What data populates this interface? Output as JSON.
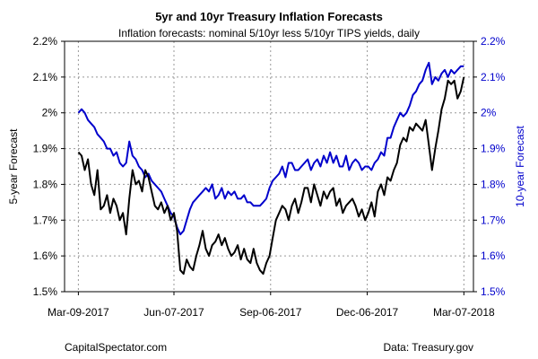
{
  "chart_data": {
    "type": "line",
    "title": "5yr and 10yr Treasury Inflation Forecasts",
    "subtitle": "Inflation forecasts: nominal 5/10yr less 5/10yr TIPS yields, daily",
    "ylabel_left": "5-year Forecast",
    "ylabel_right": "10-year Forecast",
    "ylim": [
      1.5,
      2.2
    ],
    "y_ticks": [
      "1.5%",
      "1.6%",
      "1.7%",
      "1.8%",
      "1.9%",
      "2%",
      "2.1%",
      "2.2%"
    ],
    "y_tick_values": [
      1.5,
      1.6,
      1.7,
      1.8,
      1.9,
      2.0,
      2.1,
      2.2
    ],
    "x_ticks": [
      "Mar-09-2017",
      "Jun-07-2017",
      "Sep-06-2017",
      "Dec-06-2017",
      "Mar-07-2018"
    ],
    "x_tick_values": [
      "2017-03-09",
      "2017-06-07",
      "2017-09-06",
      "2017-12-06",
      "2018-03-07"
    ],
    "xlim": [
      "2017-02-24",
      "2018-03-16"
    ],
    "grid": true,
    "source_left": "CapitalSpectator.com",
    "source_right": "Data: Treasury.gov",
    "colors": {
      "five_year": "#000000",
      "ten_year": "#0000cc",
      "grid": "#999999",
      "axis": "#000000"
    },
    "series": [
      {
        "key": "five_year",
        "axis": "left",
        "x": [
          "2017-03-09",
          "2017-03-12",
          "2017-03-15",
          "2017-03-18",
          "2017-03-21",
          "2017-03-24",
          "2017-03-27",
          "2017-03-30",
          "2017-04-02",
          "2017-04-05",
          "2017-04-08",
          "2017-04-11",
          "2017-04-14",
          "2017-04-17",
          "2017-04-20",
          "2017-04-23",
          "2017-04-26",
          "2017-04-29",
          "2017-05-02",
          "2017-05-05",
          "2017-05-08",
          "2017-05-11",
          "2017-05-14",
          "2017-05-17",
          "2017-05-20",
          "2017-05-23",
          "2017-05-26",
          "2017-05-29",
          "2017-06-01",
          "2017-06-04",
          "2017-06-07",
          "2017-06-10",
          "2017-06-13",
          "2017-06-16",
          "2017-06-19",
          "2017-06-22",
          "2017-06-25",
          "2017-06-28",
          "2017-07-01",
          "2017-07-04",
          "2017-07-07",
          "2017-07-10",
          "2017-07-13",
          "2017-07-16",
          "2017-07-19",
          "2017-07-22",
          "2017-07-25",
          "2017-07-28",
          "2017-07-31",
          "2017-08-03",
          "2017-08-06",
          "2017-08-09",
          "2017-08-12",
          "2017-08-15",
          "2017-08-18",
          "2017-08-21",
          "2017-08-24",
          "2017-08-27",
          "2017-08-30",
          "2017-09-02",
          "2017-09-05",
          "2017-09-08",
          "2017-09-11",
          "2017-09-14",
          "2017-09-17",
          "2017-09-20",
          "2017-09-23",
          "2017-09-26",
          "2017-09-29",
          "2017-10-02",
          "2017-10-05",
          "2017-10-08",
          "2017-10-11",
          "2017-10-14",
          "2017-10-17",
          "2017-10-20",
          "2017-10-23",
          "2017-10-26",
          "2017-10-29",
          "2017-11-01",
          "2017-11-04",
          "2017-11-07",
          "2017-11-10",
          "2017-11-13",
          "2017-11-16",
          "2017-11-19",
          "2017-11-22",
          "2017-11-25",
          "2017-11-28",
          "2017-12-01",
          "2017-12-04",
          "2017-12-07",
          "2017-12-10",
          "2017-12-13",
          "2017-12-16",
          "2017-12-19",
          "2017-12-22",
          "2017-12-25",
          "2017-12-28",
          "2017-12-31",
          "2018-01-03",
          "2018-01-06",
          "2018-01-09",
          "2018-01-12",
          "2018-01-15",
          "2018-01-18",
          "2018-01-21",
          "2018-01-24",
          "2018-01-27",
          "2018-01-30",
          "2018-02-02",
          "2018-02-05",
          "2018-02-08",
          "2018-02-11",
          "2018-02-14",
          "2018-02-17",
          "2018-02-20",
          "2018-02-23",
          "2018-02-26",
          "2018-03-01",
          "2018-03-04",
          "2018-03-07"
        ],
        "values": [
          1.89,
          1.88,
          1.84,
          1.87,
          1.8,
          1.77,
          1.84,
          1.73,
          1.74,
          1.77,
          1.72,
          1.76,
          1.74,
          1.7,
          1.72,
          1.66,
          1.76,
          1.84,
          1.8,
          1.81,
          1.78,
          1.84,
          1.82,
          1.78,
          1.74,
          1.73,
          1.75,
          1.72,
          1.74,
          1.7,
          1.72,
          1.67,
          1.56,
          1.55,
          1.59,
          1.57,
          1.56,
          1.6,
          1.63,
          1.67,
          1.62,
          1.6,
          1.63,
          1.64,
          1.66,
          1.63,
          1.65,
          1.62,
          1.6,
          1.61,
          1.63,
          1.59,
          1.62,
          1.59,
          1.58,
          1.62,
          1.58,
          1.56,
          1.55,
          1.58,
          1.6,
          1.65,
          1.7,
          1.72,
          1.74,
          1.73,
          1.7,
          1.74,
          1.76,
          1.72,
          1.75,
          1.79,
          1.79,
          1.75,
          1.8,
          1.77,
          1.74,
          1.78,
          1.76,
          1.78,
          1.79,
          1.74,
          1.76,
          1.72,
          1.74,
          1.75,
          1.76,
          1.74,
          1.71,
          1.73,
          1.7,
          1.72,
          1.75,
          1.71,
          1.78,
          1.8,
          1.77,
          1.82,
          1.81,
          1.84,
          1.86,
          1.91,
          1.93,
          1.92,
          1.96,
          1.95,
          1.97,
          1.96,
          1.95,
          1.98,
          1.91,
          1.84,
          1.9,
          1.95,
          2.01,
          2.04,
          2.09,
          2.08,
          2.09,
          2.04,
          2.06,
          2.1
        ]
      },
      {
        "key": "ten_year",
        "axis": "right",
        "x": [
          "2017-03-09",
          "2017-03-12",
          "2017-03-15",
          "2017-03-18",
          "2017-03-21",
          "2017-03-24",
          "2017-03-27",
          "2017-03-30",
          "2017-04-02",
          "2017-04-05",
          "2017-04-08",
          "2017-04-11",
          "2017-04-14",
          "2017-04-17",
          "2017-04-20",
          "2017-04-23",
          "2017-04-26",
          "2017-04-29",
          "2017-05-02",
          "2017-05-05",
          "2017-05-08",
          "2017-05-11",
          "2017-05-14",
          "2017-05-17",
          "2017-05-20",
          "2017-05-23",
          "2017-05-26",
          "2017-05-29",
          "2017-06-01",
          "2017-06-04",
          "2017-06-07",
          "2017-06-10",
          "2017-06-13",
          "2017-06-16",
          "2017-06-19",
          "2017-06-22",
          "2017-06-25",
          "2017-06-28",
          "2017-07-01",
          "2017-07-04",
          "2017-07-07",
          "2017-07-10",
          "2017-07-13",
          "2017-07-16",
          "2017-07-19",
          "2017-07-22",
          "2017-07-25",
          "2017-07-28",
          "2017-07-31",
          "2017-08-03",
          "2017-08-06",
          "2017-08-09",
          "2017-08-12",
          "2017-08-15",
          "2017-08-18",
          "2017-08-21",
          "2017-08-24",
          "2017-08-27",
          "2017-08-30",
          "2017-09-02",
          "2017-09-05",
          "2017-09-08",
          "2017-09-11",
          "2017-09-14",
          "2017-09-17",
          "2017-09-20",
          "2017-09-23",
          "2017-09-26",
          "2017-09-29",
          "2017-10-02",
          "2017-10-05",
          "2017-10-08",
          "2017-10-11",
          "2017-10-14",
          "2017-10-17",
          "2017-10-20",
          "2017-10-23",
          "2017-10-26",
          "2017-10-29",
          "2017-11-01",
          "2017-11-04",
          "2017-11-07",
          "2017-11-10",
          "2017-11-13",
          "2017-11-16",
          "2017-11-19",
          "2017-11-22",
          "2017-11-25",
          "2017-11-28",
          "2017-12-01",
          "2017-12-04",
          "2017-12-07",
          "2017-12-10",
          "2017-12-13",
          "2017-12-16",
          "2017-12-19",
          "2017-12-22",
          "2017-12-25",
          "2017-12-28",
          "2017-12-31",
          "2018-01-03",
          "2018-01-06",
          "2018-01-09",
          "2018-01-12",
          "2018-01-15",
          "2018-01-18",
          "2018-01-21",
          "2018-01-24",
          "2018-01-27",
          "2018-01-30",
          "2018-02-02",
          "2018-02-05",
          "2018-02-08",
          "2018-02-11",
          "2018-02-14",
          "2018-02-17",
          "2018-02-20",
          "2018-02-23",
          "2018-02-26",
          "2018-03-01",
          "2018-03-04",
          "2018-03-07"
        ],
        "values": [
          2.0,
          2.01,
          2.0,
          1.98,
          1.97,
          1.96,
          1.94,
          1.93,
          1.92,
          1.9,
          1.9,
          1.88,
          1.89,
          1.86,
          1.85,
          1.86,
          1.92,
          1.88,
          1.87,
          1.85,
          1.84,
          1.82,
          1.83,
          1.81,
          1.8,
          1.79,
          1.78,
          1.76,
          1.74,
          1.72,
          1.71,
          1.68,
          1.66,
          1.67,
          1.7,
          1.73,
          1.75,
          1.76,
          1.77,
          1.78,
          1.79,
          1.78,
          1.8,
          1.76,
          1.77,
          1.79,
          1.76,
          1.78,
          1.77,
          1.78,
          1.76,
          1.76,
          1.77,
          1.75,
          1.75,
          1.74,
          1.74,
          1.74,
          1.75,
          1.76,
          1.79,
          1.81,
          1.82,
          1.83,
          1.85,
          1.82,
          1.86,
          1.86,
          1.84,
          1.84,
          1.85,
          1.86,
          1.87,
          1.84,
          1.86,
          1.87,
          1.85,
          1.88,
          1.86,
          1.89,
          1.86,
          1.88,
          1.85,
          1.85,
          1.88,
          1.84,
          1.86,
          1.87,
          1.86,
          1.84,
          1.85,
          1.85,
          1.84,
          1.86,
          1.87,
          1.89,
          1.88,
          1.93,
          1.93,
          1.96,
          1.98,
          2.0,
          1.99,
          2.0,
          2.02,
          2.05,
          2.06,
          2.08,
          2.09,
          2.12,
          2.14,
          2.08,
          2.1,
          2.09,
          2.11,
          2.12,
          2.1,
          2.12,
          2.11,
          2.12,
          2.13,
          2.13
        ]
      }
    ]
  }
}
